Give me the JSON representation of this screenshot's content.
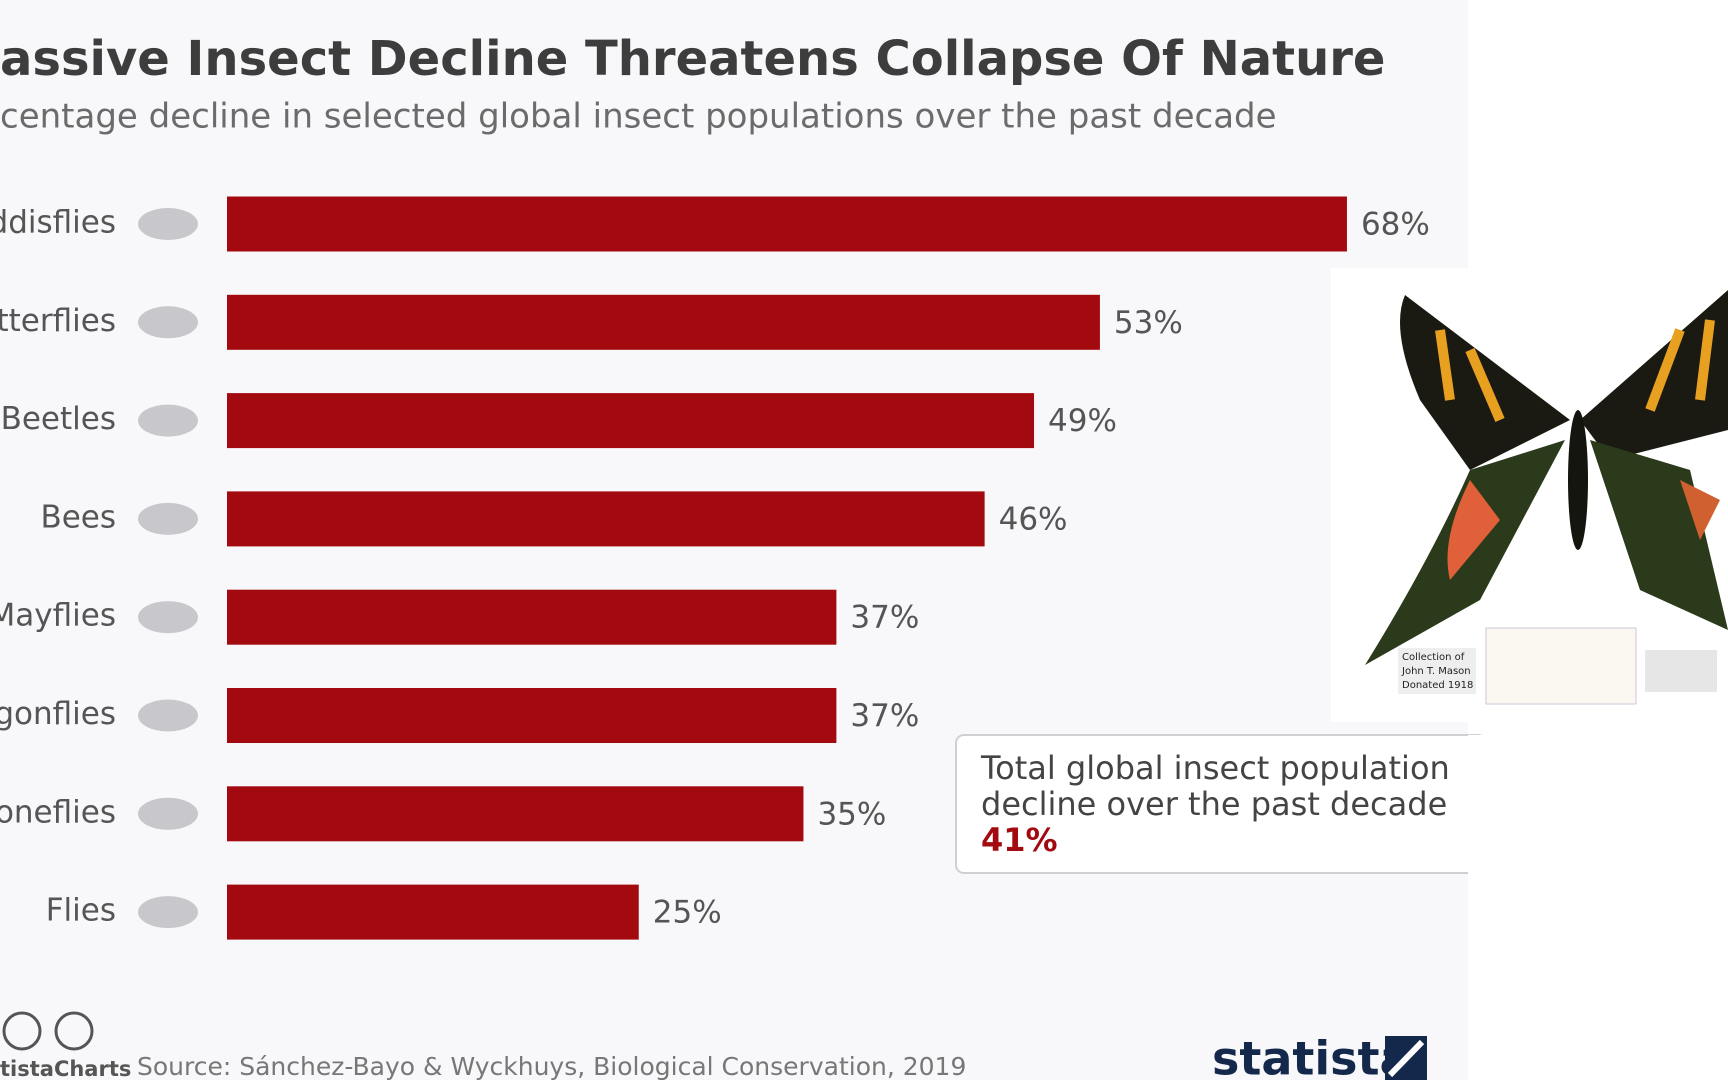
{
  "chart_data": {
    "type": "bar",
    "title": "assive Insect Decline Threatens Collapse Of Nature",
    "subtitle": "centage decline in selected global insect populations over the past decade",
    "categories": [
      "ddisflies",
      "tterflies",
      "Beetles",
      "Bees",
      "Mayflies",
      "gonflies",
      "oneflies",
      "Flies"
    ],
    "values": [
      68,
      53,
      49,
      46,
      37,
      37,
      35,
      25
    ],
    "value_labels": [
      "68%",
      "53%",
      "49%",
      "46%",
      "37%",
      "37%",
      "35%",
      "25%"
    ],
    "color": "#a30a0f",
    "annotation": {
      "lines": [
        "Total global insect population",
        "decline over the past decade"
      ],
      "highlight": "41%"
    },
    "source": "Source: Sánchez-Bayo & Wyckhuys, Biological Conservation, 2019",
    "brand_left": "tistaCharts",
    "brand_right": "statista",
    "photo_labels": [
      "Collection of",
      "John T. Mason",
      "Donated 1918"
    ]
  }
}
